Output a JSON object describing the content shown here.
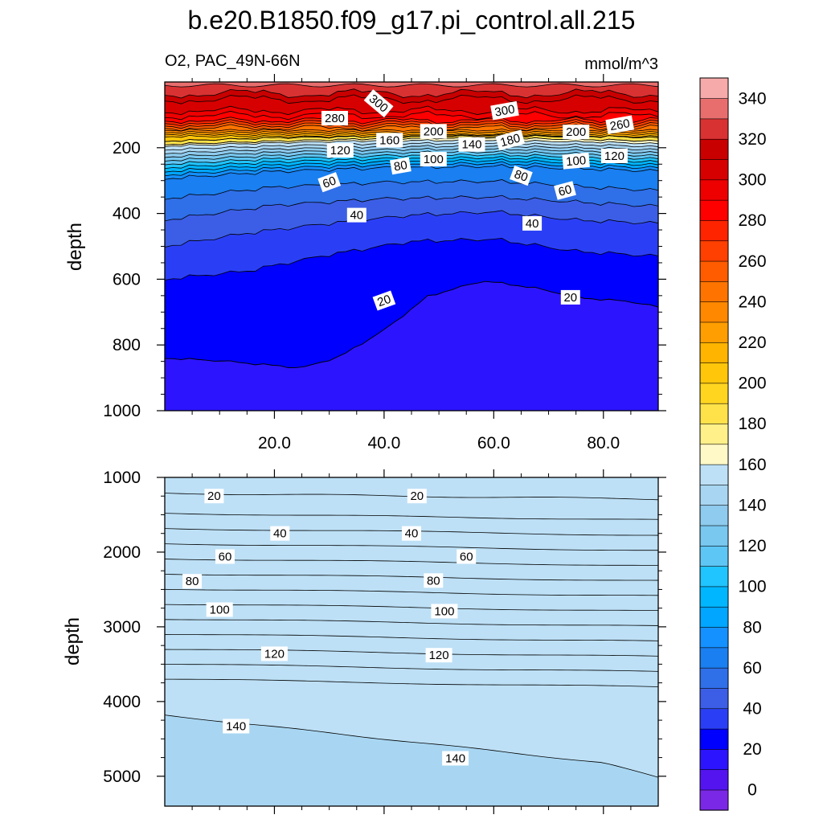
{
  "chart_data": {
    "type": "contour",
    "title": "b.e20.B1850.f09_g17.pi_control.all.215",
    "subtitle_left": "O2, PAC_49N-66N",
    "units": "mmol/m^3",
    "ylabel": "depth",
    "x_ticks": [
      20,
      40,
      60,
      80
    ],
    "x_tick_labels": [
      "20.0",
      "40.0",
      "60.0",
      "80.0"
    ],
    "xlim": [
      0,
      90
    ],
    "upper_panel": {
      "ylim": [
        0,
        1000
      ],
      "y_ticks": [
        200,
        400,
        600,
        800,
        1000
      ],
      "y_tick_labels": [
        "200",
        "400",
        "600",
        "800",
        "1000"
      ],
      "contour_labels": [
        {
          "text": "300",
          "x": 39,
          "y": 65,
          "rot": 40
        },
        {
          "text": "280",
          "x": 31,
          "y": 110,
          "rot": 0
        },
        {
          "text": "300",
          "x": 62,
          "y": 87,
          "rot": -10
        },
        {
          "text": "160",
          "x": 41,
          "y": 177,
          "rot": 0
        },
        {
          "text": "200",
          "x": 49,
          "y": 150,
          "rot": 0
        },
        {
          "text": "140",
          "x": 56,
          "y": 190,
          "rot": 0
        },
        {
          "text": "180",
          "x": 63,
          "y": 177,
          "rot": -15
        },
        {
          "text": "200",
          "x": 75,
          "y": 152,
          "rot": 0
        },
        {
          "text": "260",
          "x": 83,
          "y": 130,
          "rot": -10
        },
        {
          "text": "120",
          "x": 32,
          "y": 208,
          "rot": 0
        },
        {
          "text": "80",
          "x": 43,
          "y": 255,
          "rot": -10
        },
        {
          "text": "100",
          "x": 49,
          "y": 235,
          "rot": 0
        },
        {
          "text": "100",
          "x": 75,
          "y": 240,
          "rot": -5
        },
        {
          "text": "120",
          "x": 82,
          "y": 225,
          "rot": 0
        },
        {
          "text": "80",
          "x": 65,
          "y": 285,
          "rot": 20
        },
        {
          "text": "60",
          "x": 30,
          "y": 305,
          "rot": -20
        },
        {
          "text": "60",
          "x": 73,
          "y": 330,
          "rot": -15
        },
        {
          "text": "40",
          "x": 35,
          "y": 405,
          "rot": 0
        },
        {
          "text": "40",
          "x": 67,
          "y": 430,
          "rot": 0
        },
        {
          "text": "20",
          "x": 40,
          "y": 665,
          "rot": -20
        },
        {
          "text": "20",
          "x": 74,
          "y": 655,
          "rot": 0
        }
      ]
    },
    "lower_panel": {
      "ylim": [
        1000,
        5400
      ],
      "y_ticks": [
        1000,
        2000,
        3000,
        4000,
        5000
      ],
      "y_tick_labels": [
        "1000",
        "2000",
        "3000",
        "4000",
        "5000"
      ],
      "contour_labels": [
        {
          "text": "20",
          "x": 9,
          "y": 1250,
          "rot": 0
        },
        {
          "text": "20",
          "x": 46,
          "y": 1250,
          "rot": 0
        },
        {
          "text": "40",
          "x": 21,
          "y": 1750,
          "rot": 0
        },
        {
          "text": "40",
          "x": 45,
          "y": 1750,
          "rot": 0
        },
        {
          "text": "60",
          "x": 11,
          "y": 2060,
          "rot": 0
        },
        {
          "text": "60",
          "x": 55,
          "y": 2060,
          "rot": 0
        },
        {
          "text": "80",
          "x": 5,
          "y": 2390,
          "rot": 0
        },
        {
          "text": "80",
          "x": 49,
          "y": 2380,
          "rot": 0
        },
        {
          "text": "100",
          "x": 10,
          "y": 2770,
          "rot": 0
        },
        {
          "text": "100",
          "x": 51,
          "y": 2790,
          "rot": 0
        },
        {
          "text": "120",
          "x": 20,
          "y": 3360,
          "rot": 0
        },
        {
          "text": "120",
          "x": 50,
          "y": 3380,
          "rot": 0
        },
        {
          "text": "140",
          "x": 13,
          "y": 4330,
          "rot": 0
        },
        {
          "text": "140",
          "x": 53,
          "y": 4760,
          "rot": 0
        }
      ]
    },
    "colorbar": {
      "labels": [
        0,
        20,
        40,
        60,
        80,
        100,
        120,
        140,
        160,
        180,
        200,
        220,
        240,
        260,
        280,
        300,
        320,
        340
      ],
      "colors": [
        "#7b28e6",
        "#5414f0",
        "#2d14ff",
        "#0000ff",
        "#2a3ff5",
        "#3c5ee6",
        "#2f6fe8",
        "#1a7ff0",
        "#1590ff",
        "#00a6ff",
        "#00b6ff",
        "#20c4ff",
        "#5ec6f5",
        "#78c8f0",
        "#8ecbee",
        "#a8d6f2",
        "#bde0f6",
        "#fff9c8",
        "#fff08a",
        "#ffe24a",
        "#ffd520",
        "#ffc60a",
        "#ffb400",
        "#ff9e00",
        "#ff8800",
        "#ff7400",
        "#ff5c00",
        "#ff4000",
        "#ff2400",
        "#ff0000",
        "#ee0000",
        "#d70000",
        "#c80000",
        "#d93232",
        "#e86e6e",
        "#f6aaaa"
      ]
    }
  }
}
